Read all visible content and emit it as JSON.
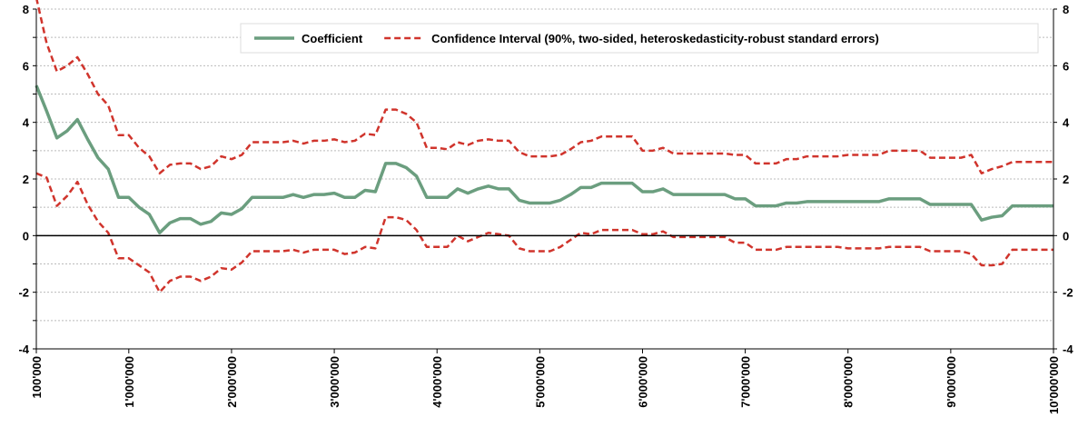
{
  "chart_data": {
    "type": "line",
    "x": [
      100000,
      200000,
      300000,
      400000,
      500000,
      600000,
      700000,
      800000,
      900000,
      1000000,
      1100000,
      1200000,
      1300000,
      1400000,
      1500000,
      1600000,
      1700000,
      1800000,
      1900000,
      2000000,
      2100000,
      2200000,
      2300000,
      2400000,
      2500000,
      2600000,
      2700000,
      2800000,
      2900000,
      3000000,
      3100000,
      3200000,
      3300000,
      3400000,
      3500000,
      3600000,
      3700000,
      3800000,
      3900000,
      4000000,
      4100000,
      4200000,
      4300000,
      4400000,
      4500000,
      4600000,
      4700000,
      4800000,
      4900000,
      5000000,
      5100000,
      5200000,
      5300000,
      5400000,
      5500000,
      5600000,
      5700000,
      5800000,
      5900000,
      6000000,
      6100000,
      6200000,
      6300000,
      6400000,
      6500000,
      6600000,
      6700000,
      6800000,
      6900000,
      7000000,
      7100000,
      7200000,
      7300000,
      7400000,
      7500000,
      7600000,
      7700000,
      7800000,
      7900000,
      8000000,
      8100000,
      8200000,
      8300000,
      8400000,
      8500000,
      8600000,
      8700000,
      8800000,
      8900000,
      9000000,
      9100000,
      9200000,
      9300000,
      9400000,
      9500000,
      9600000,
      9700000,
      9800000,
      9900000,
      10000000
    ],
    "series": [
      {
        "name": "Coefficient",
        "color": "#6b9e7f",
        "dash": "solid",
        "values": [
          5.3,
          4.4,
          3.45,
          3.7,
          4.1,
          3.4,
          2.75,
          2.35,
          1.35,
          1.35,
          1.0,
          0.75,
          0.1,
          0.45,
          0.6,
          0.6,
          0.4,
          0.5,
          0.8,
          0.75,
          0.95,
          1.35,
          1.35,
          1.35,
          1.35,
          1.45,
          1.35,
          1.45,
          1.45,
          1.5,
          1.35,
          1.35,
          1.6,
          1.55,
          2.55,
          2.55,
          2.4,
          2.1,
          1.35,
          1.35,
          1.35,
          1.65,
          1.5,
          1.65,
          1.75,
          1.65,
          1.65,
          1.25,
          1.15,
          1.15,
          1.15,
          1.25,
          1.45,
          1.7,
          1.7,
          1.85,
          1.85,
          1.85,
          1.85,
          1.55,
          1.55,
          1.65,
          1.45,
          1.45,
          1.45,
          1.45,
          1.45,
          1.45,
          1.3,
          1.3,
          1.05,
          1.05,
          1.05,
          1.15,
          1.15,
          1.2,
          1.2,
          1.2,
          1.2,
          1.2,
          1.2,
          1.2,
          1.2,
          1.3,
          1.3,
          1.3,
          1.3,
          1.1,
          1.1,
          1.1,
          1.1,
          1.1,
          0.55,
          0.65,
          0.7,
          1.05,
          1.05,
          1.05,
          1.05,
          1.05
        ]
      },
      {
        "name": "Confidence Interval (90%, two-sided, heteroskedasticity-robust standard errors)",
        "color": "#d0342c",
        "dash": "dashed",
        "values": [
          8.4,
          6.8,
          5.8,
          6.0,
          6.3,
          5.7,
          5.0,
          4.6,
          3.55,
          3.55,
          3.1,
          2.8,
          2.2,
          2.5,
          2.55,
          2.55,
          2.35,
          2.45,
          2.8,
          2.7,
          2.85,
          3.3,
          3.3,
          3.3,
          3.3,
          3.35,
          3.25,
          3.35,
          3.35,
          3.4,
          3.3,
          3.35,
          3.6,
          3.55,
          4.45,
          4.45,
          4.3,
          4.0,
          3.1,
          3.1,
          3.05,
          3.3,
          3.2,
          3.35,
          3.4,
          3.35,
          3.35,
          2.95,
          2.8,
          2.8,
          2.8,
          2.85,
          3.05,
          3.3,
          3.35,
          3.5,
          3.5,
          3.5,
          3.5,
          3.0,
          3.0,
          3.1,
          2.9,
          2.9,
          2.9,
          2.9,
          2.9,
          2.9,
          2.85,
          2.85,
          2.55,
          2.55,
          2.55,
          2.7,
          2.7,
          2.8,
          2.8,
          2.8,
          2.8,
          2.85,
          2.85,
          2.85,
          2.85,
          3.0,
          3.0,
          3.0,
          3.0,
          2.75,
          2.75,
          2.75,
          2.75,
          2.85,
          2.2,
          2.35,
          2.45,
          2.6,
          2.6,
          2.6,
          2.6,
          2.6
        ]
      },
      {
        "color": "#d0342c",
        "dash": "dashed",
        "values": [
          2.2,
          2.05,
          1.05,
          1.4,
          1.9,
          1.1,
          0.5,
          0.1,
          -0.8,
          -0.8,
          -1.05,
          -1.3,
          -2.0,
          -1.6,
          -1.45,
          -1.45,
          -1.6,
          -1.45,
          -1.15,
          -1.2,
          -0.95,
          -0.55,
          -0.55,
          -0.55,
          -0.55,
          -0.5,
          -0.6,
          -0.5,
          -0.5,
          -0.5,
          -0.65,
          -0.6,
          -0.4,
          -0.45,
          0.65,
          0.65,
          0.55,
          0.2,
          -0.4,
          -0.4,
          -0.4,
          0.0,
          -0.2,
          -0.05,
          0.1,
          0.05,
          0.0,
          -0.45,
          -0.55,
          -0.55,
          -0.55,
          -0.4,
          -0.15,
          0.1,
          0.05,
          0.2,
          0.2,
          0.2,
          0.2,
          0.05,
          0.05,
          0.15,
          -0.05,
          -0.05,
          -0.05,
          -0.05,
          -0.05,
          -0.05,
          -0.25,
          -0.25,
          -0.5,
          -0.5,
          -0.5,
          -0.4,
          -0.4,
          -0.4,
          -0.4,
          -0.4,
          -0.4,
          -0.45,
          -0.45,
          -0.45,
          -0.45,
          -0.4,
          -0.4,
          -0.4,
          -0.4,
          -0.55,
          -0.55,
          -0.55,
          -0.55,
          -0.65,
          -1.05,
          -1.05,
          -1.0,
          -0.5,
          -0.5,
          -0.5,
          -0.5,
          -0.5
        ]
      }
    ],
    "xlim": [
      100000,
      10000000
    ],
    "xticks": [
      {
        "value": 100000,
        "label": "100'000"
      },
      {
        "value": 1000000,
        "label": "1'000'000"
      },
      {
        "value": 2000000,
        "label": "2'000'000"
      },
      {
        "value": 3000000,
        "label": "3'000'000"
      },
      {
        "value": 4000000,
        "label": "4'000'000"
      },
      {
        "value": 5000000,
        "label": "5'000'000"
      },
      {
        "value": 6000000,
        "label": "6'000'000"
      },
      {
        "value": 7000000,
        "label": "7'000'000"
      },
      {
        "value": 8000000,
        "label": "8'000'000"
      },
      {
        "value": 9000000,
        "label": "9'000'000"
      },
      {
        "value": 10000000,
        "label": "10'000'000"
      }
    ],
    "ylim": [
      -4,
      8
    ],
    "yticks": [
      -4,
      -2,
      0,
      2,
      4,
      6,
      8
    ],
    "minor_yticks": [
      -3,
      -1,
      1,
      3,
      5,
      7
    ],
    "y2lim": [
      -4,
      8
    ],
    "y2ticks": [
      -4,
      -2,
      0,
      2,
      4,
      6,
      8
    ],
    "grid": true,
    "legend": "top"
  }
}
